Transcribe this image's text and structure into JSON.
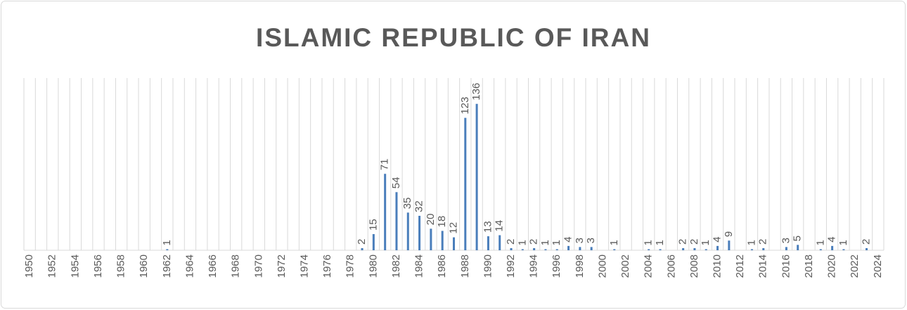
{
  "chart_data": {
    "type": "bar",
    "title": "ISLAMIC REPUBLIC OF IRAN",
    "categories": [
      "1950",
      null,
      "1952",
      null,
      "1954",
      null,
      "1956",
      null,
      "1958",
      null,
      "1960",
      null,
      "1962",
      null,
      "1964",
      null,
      "1966",
      null,
      "1968",
      null,
      "1970",
      null,
      "1972",
      null,
      "1974",
      null,
      "1976",
      null,
      "1978",
      null,
      "1980",
      null,
      "1982",
      null,
      "1984",
      null,
      "1986",
      null,
      "1988",
      null,
      "1990",
      null,
      "1992",
      null,
      "1994",
      null,
      "1996",
      null,
      "1998",
      null,
      "2000",
      null,
      "2002",
      null,
      "2004",
      null,
      "2006",
      null,
      "2008",
      null,
      "2010",
      null,
      "2012",
      null,
      "2014",
      null,
      "2016",
      null,
      "2018",
      null,
      "2020",
      null,
      "2022",
      null,
      "2024"
    ],
    "values": [
      0,
      0,
      0,
      0,
      0,
      0,
      0,
      0,
      0,
      0,
      0,
      0,
      1,
      0,
      0,
      0,
      0,
      0,
      0,
      0,
      0,
      0,
      0,
      0,
      0,
      0,
      0,
      0,
      0,
      2,
      15,
      71,
      54,
      35,
      32,
      20,
      18,
      12,
      123,
      136,
      13,
      14,
      2,
      1,
      2,
      1,
      1,
      4,
      3,
      3,
      0,
      1,
      0,
      0,
      1,
      1,
      0,
      2,
      2,
      1,
      4,
      9,
      0,
      1,
      2,
      0,
      3,
      5,
      0,
      1,
      4,
      1,
      0,
      2,
      0
    ],
    "color": "#4a7ebb",
    "ylim": [
      0,
      160
    ],
    "grid": true
  }
}
